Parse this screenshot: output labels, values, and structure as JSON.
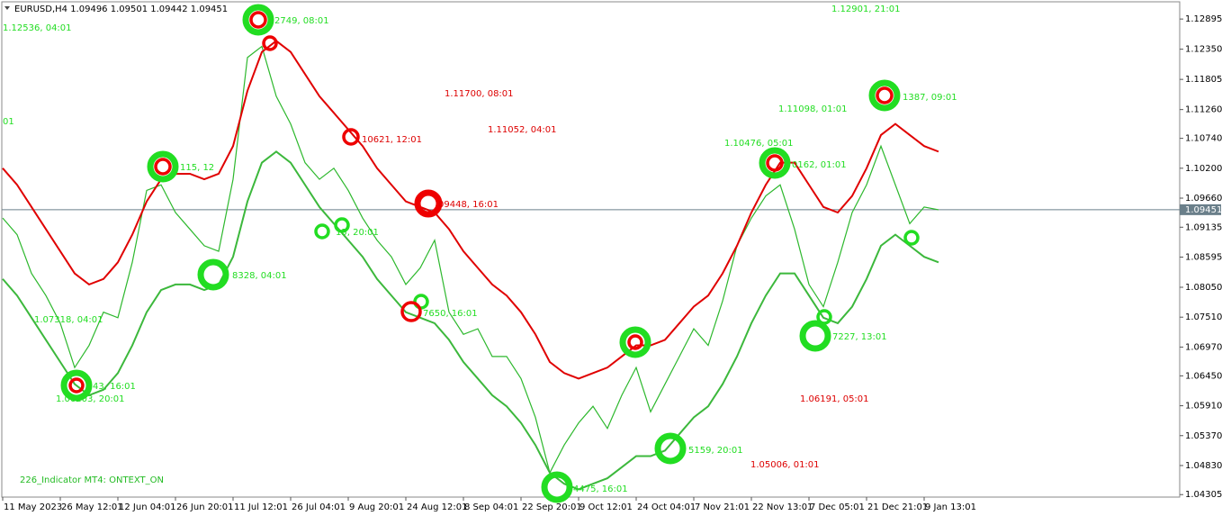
{
  "chart_data": {
    "type": "line",
    "title": "EURUSD,H4  1.09496 1.09501 1.09442 1.09451",
    "categories": [
      "11 May 2023",
      null,
      null,
      null,
      "26 May 12:01",
      null,
      null,
      null,
      "12 Jun 04:01",
      null,
      null,
      null,
      "26 Jun 20:01",
      null,
      null,
      null,
      "11 Jul 12:01",
      null,
      null,
      null,
      "26 Jul 04:01",
      null,
      null,
      null,
      "9 Aug 20:01",
      null,
      null,
      null,
      "24 Aug 12:01",
      null,
      null,
      null,
      "8 Sep 04:01",
      null,
      null,
      null,
      "22 Sep 20:01",
      null,
      null,
      null,
      "9 Oct 12:01",
      null,
      null,
      null,
      "24 Oct 04:01",
      null,
      null,
      null,
      "7 Nov 21:01",
      null,
      null,
      null,
      "22 Nov 13:01",
      null,
      null,
      null,
      "7 Dec 05:01",
      null,
      null,
      null,
      "21 Dec 21:01",
      null,
      null,
      null,
      "9 Jan 13:01",
      null
    ],
    "series": [
      {
        "color": "#2db82d",
        "values": [
          1.093,
          1.09,
          1.083,
          1.079,
          1.074,
          1.066,
          1.07,
          1.076,
          1.075,
          1.085,
          1.098,
          1.099,
          1.094,
          1.091,
          1.088,
          1.087,
          1.1,
          1.122,
          1.124,
          1.115,
          1.11,
          1.103,
          1.1,
          1.102,
          1.098,
          1.093,
          1.089,
          1.086,
          1.081,
          1.084,
          1.089,
          1.076,
          1.072,
          1.073,
          1.068,
          1.068,
          1.064,
          1.057,
          1.047,
          1.052,
          1.056,
          1.059,
          1.055,
          1.061,
          1.066,
          1.058,
          1.063,
          1.068,
          1.073,
          1.07,
          1.078,
          1.088,
          1.093,
          1.097,
          1.099,
          1.091,
          1.081,
          1.077,
          1.085,
          1.094,
          1.099,
          1.106,
          1.099,
          1.092,
          1.095,
          1.0945
        ]
      },
      {
        "color": "#e00000",
        "values": [
          1.102,
          1.099,
          1.095,
          1.091,
          1.087,
          1.083,
          1.081,
          1.082,
          1.085,
          1.09,
          1.096,
          1.1,
          1.101,
          1.101,
          1.1,
          1.101,
          1.106,
          1.116,
          1.123,
          1.125,
          1.123,
          1.119,
          1.115,
          1.112,
          1.109,
          1.106,
          1.102,
          1.099,
          1.096,
          1.095,
          1.094,
          1.091,
          1.087,
          1.084,
          1.081,
          1.079,
          1.076,
          1.072,
          1.067,
          1.065,
          1.064,
          1.065,
          1.066,
          1.068,
          1.07,
          1.07,
          1.071,
          1.074,
          1.077,
          1.079,
          1.083,
          1.088,
          1.094,
          1.099,
          1.103,
          1.103,
          1.099,
          1.095,
          1.094,
          1.097,
          1.102,
          1.108,
          1.11,
          1.108,
          1.106,
          1.105
        ]
      },
      {
        "color": "#3cb83c",
        "values": [
          1.082,
          1.079,
          1.075,
          1.071,
          1.067,
          1.063,
          1.061,
          1.062,
          1.065,
          1.07,
          1.076,
          1.08,
          1.081,
          1.081,
          1.08,
          1.081,
          1.086,
          1.096,
          1.103,
          1.105,
          1.103,
          1.099,
          1.095,
          1.092,
          1.089,
          1.086,
          1.082,
          1.079,
          1.076,
          1.075,
          1.074,
          1.071,
          1.067,
          1.064,
          1.061,
          1.059,
          1.056,
          1.052,
          1.047,
          1.045,
          1.044,
          1.045,
          1.046,
          1.048,
          1.05,
          1.05,
          1.051,
          1.054,
          1.057,
          1.059,
          1.063,
          1.068,
          1.074,
          1.079,
          1.083,
          1.083,
          1.079,
          1.075,
          1.074,
          1.077,
          1.082,
          1.088,
          1.09,
          1.088,
          1.086,
          1.085
        ]
      }
    ],
    "ylim": [
      1.0426,
      1.1319
    ],
    "yticks": [
      {
        "value": 1.12895,
        "label": "1.12895"
      },
      {
        "value": 1.1235,
        "label": "1.12350"
      },
      {
        "value": 1.11805,
        "label": "1.11805"
      },
      {
        "value": 1.1126,
        "label": "1.11260"
      },
      {
        "value": 1.1074,
        "label": "1.10740"
      },
      {
        "value": 1.102,
        "label": "1.10200"
      },
      {
        "value": 1.0966,
        "label": "1.09660"
      },
      {
        "value": 1.09135,
        "label": "1.09135"
      },
      {
        "value": 1.08595,
        "label": "1.08595"
      },
      {
        "value": 1.0805,
        "label": "1.08050"
      },
      {
        "value": 1.0751,
        "label": "1.07510"
      },
      {
        "value": 1.0697,
        "label": "1.06970"
      },
      {
        "value": 1.0645,
        "label": "1.06450"
      },
      {
        "value": 1.0591,
        "label": "1.05910"
      },
      {
        "value": 1.0537,
        "label": "1.05370"
      },
      {
        "value": 1.0483,
        "label": "1.04830"
      },
      {
        "value": 1.04305,
        "label": "1.04305"
      }
    ],
    "current_price": {
      "value": 1.09451,
      "label": "1.09451"
    },
    "annotations": [
      {
        "text": "1.12536, 04:01",
        "color": "#22dd22"
      },
      {
        "text": "01",
        "color": "#22dd22"
      },
      {
        "text": "2749, 08:01",
        "color": "#22dd22"
      },
      {
        "text": "115, 12",
        "color": "#22dd22"
      },
      {
        "text": "8328, 04:01",
        "color": "#22dd22"
      },
      {
        "text": "1.07318, 04:01",
        "color": "#22dd22"
      },
      {
        "text": "43, 16:01",
        "color": "#22dd22"
      },
      {
        "text": "1.06203, 20:01",
        "color": "#22dd22"
      },
      {
        "text": "15, 20:01",
        "color": "#22dd22"
      },
      {
        "text": "7650, 16:01",
        "color": "#22dd22"
      },
      {
        "text": "09448, 16:01",
        "color": "#dd0000"
      },
      {
        "text": "10621, 12:01",
        "color": "#dd0000"
      },
      {
        "text": "1.11700, 08:01",
        "color": "#dd0000"
      },
      {
        "text": "1.11052, 04:01",
        "color": "#dd0000"
      },
      {
        "text": "1.12901, 21:01",
        "color": "#22dd22"
      },
      {
        "text": "1.11098, 01:01",
        "color": "#22dd22"
      },
      {
        "text": "1.10476, 05:01",
        "color": "#22dd22"
      },
      {
        "text": "0162, 01:01",
        "color": "#22dd22"
      },
      {
        "text": "1387, 09:01",
        "color": "#22dd22"
      },
      {
        "text": "7227, 13:01",
        "color": "#22dd22"
      },
      {
        "text": "1.06191, 05:01",
        "color": "#dd0000"
      },
      {
        "text": "1.05006, 01:01",
        "color": "#dd0000"
      },
      {
        "text": "5159, 20:01",
        "color": "#22dd22"
      },
      {
        "text": "4475, 16:01",
        "color": "#22dd22"
      },
      {
        "text": "226_Indicator MT4: ONTEXT_ON",
        "color": "#22bb22"
      }
    ]
  }
}
